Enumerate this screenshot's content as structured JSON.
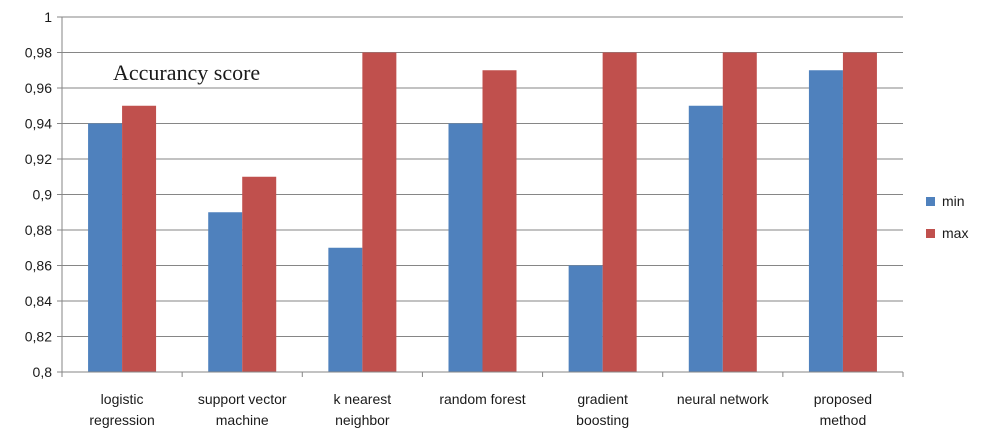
{
  "chart_data": {
    "type": "bar",
    "title": "Accurancy score",
    "categories": [
      [
        "logistic",
        "regression"
      ],
      [
        "support vector",
        "machine"
      ],
      [
        "k nearest",
        "neighbor"
      ],
      [
        "random forest"
      ],
      [
        "gradient",
        "boosting"
      ],
      [
        "neural network"
      ],
      [
        "proposed",
        "method"
      ]
    ],
    "series": [
      {
        "name": "min",
        "color": "#4f81bd",
        "values": [
          0.94,
          0.89,
          0.87,
          0.94,
          0.86,
          0.95,
          0.97
        ]
      },
      {
        "name": "max",
        "color": "#c0504d",
        "values": [
          0.95,
          0.91,
          0.98,
          0.97,
          0.98,
          0.98,
          0.98
        ]
      }
    ],
    "ylim": [
      0.8,
      1.0
    ],
    "yticks": [
      "0,8",
      "0,82",
      "0,84",
      "0,86",
      "0,88",
      "0,9",
      "0,92",
      "0,94",
      "0,96",
      "0,98",
      "1"
    ],
    "grid": true,
    "legend_position": "right"
  }
}
